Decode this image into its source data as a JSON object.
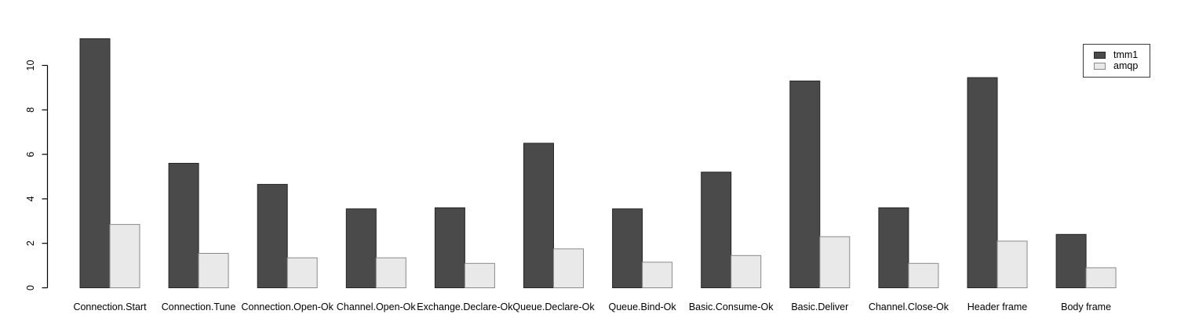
{
  "figure": {
    "background": "#ffffff",
    "axis_color": "#000000",
    "text_color": "#000000"
  },
  "chart_data": {
    "type": "bar",
    "title": "",
    "xlabel": "",
    "ylabel": "",
    "categories": [
      "Connection.Start",
      "Connection.Tune",
      "Connection.Open-Ok",
      "Channel.Open-Ok",
      "Exchange.Declare-Ok",
      "Queue.Declare-Ok",
      "Queue.Bind-Ok",
      "Basic.Consume-Ok",
      "Basic.Deliver",
      "Channel.Close-Ok",
      "Header frame",
      "Body frame"
    ],
    "series": [
      {
        "name": "tmm1",
        "fill": "#4a4a4a",
        "border": "#262626",
        "values": [
          11.2,
          5.6,
          4.65,
          3.55,
          3.6,
          6.5,
          3.55,
          5.2,
          9.3,
          3.6,
          9.45,
          2.4
        ]
      },
      {
        "name": "amqp",
        "fill": "#e9e9e9",
        "border": "#8a8a8a",
        "values": [
          2.85,
          1.55,
          1.35,
          1.35,
          1.1,
          1.75,
          1.15,
          1.45,
          2.3,
          1.1,
          2.1,
          0.9
        ]
      }
    ],
    "ylim": [
      0,
      10
    ],
    "yticks": [
      0,
      2,
      4,
      6,
      8,
      10
    ],
    "grid": false,
    "legend_position": "top-right",
    "bar_style": "grouped"
  }
}
